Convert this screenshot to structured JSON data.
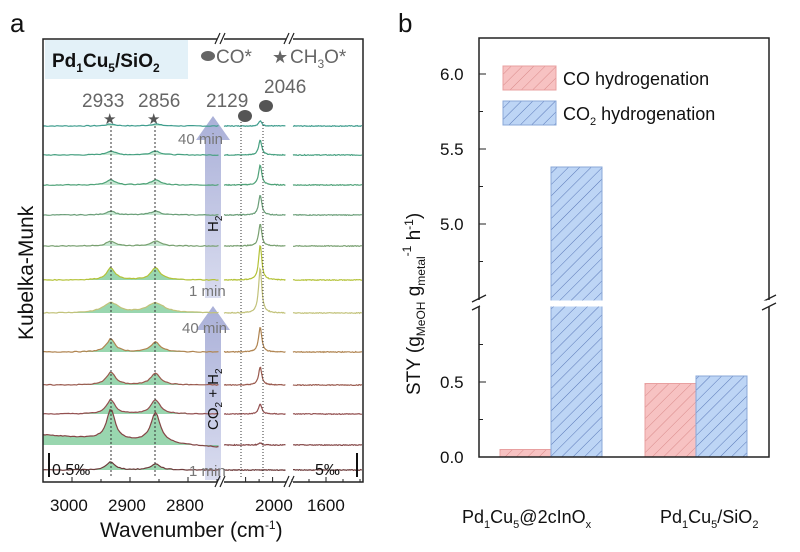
{
  "chart_data": [
    {
      "panel": "a",
      "type": "line",
      "sample_label": {
        "p1": "Pd",
        "s1": "1",
        "p2": "Cu",
        "s2": "5",
        "p3": "/SiO",
        "s3": "2"
      },
      "legend": {
        "co": "CO*",
        "ch3o_a": "CH",
        "ch3o_sub": "3",
        "ch3o_b": "O*"
      },
      "peak_labels": [
        "2933",
        "2856",
        "2129",
        "2046"
      ],
      "peak_positions": [
        2933,
        2856,
        2129,
        2046
      ],
      "ylabel": "Kubelka-Munk",
      "xlabel": "Wavenumber (cm",
      "xlabel_sup": "-1",
      "xlabel_end": ")",
      "xticks": [
        "3000",
        "2900",
        "2800",
        "2000",
        "1600"
      ],
      "xtick_values": [
        3000,
        2900,
        2800,
        2000,
        1600
      ],
      "arrows": {
        "h2": {
          "label": "H",
          "sub": "2",
          "start": "1 min",
          "end": "40 min"
        },
        "co2h2": {
          "label_a": "CO",
          "sub_a": "2",
          "label_b": " + H",
          "sub_b": "2",
          "start": "1 min",
          "end": "40 min"
        }
      },
      "scale_bars": {
        "left": "0.5‰",
        "right": "5‰"
      },
      "traces": [
        {
          "phase": "H2",
          "color": "#3f9d8e",
          "ch3o_2933": 2,
          "ch3o_2856": 2,
          "co_2046": 5
        },
        {
          "phase": "H2",
          "color": "#46a080",
          "ch3o_2933": 4,
          "ch3o_2856": 4,
          "co_2046": 15
        },
        {
          "phase": "H2",
          "color": "#4fa278",
          "ch3o_2933": 5,
          "ch3o_2856": 5,
          "co_2046": 20
        },
        {
          "phase": "H2",
          "color": "#6a9e78",
          "ch3o_2933": 4,
          "ch3o_2856": 4,
          "co_2046": 20
        },
        {
          "phase": "H2",
          "color": "#78a070",
          "ch3o_2933": 5,
          "ch3o_2856": 5,
          "co_2046": 22
        },
        {
          "phase": "H2",
          "color": "#b4c238",
          "ch3o_2933": 12,
          "ch3o_2856": 12,
          "co_2046": 35
        },
        {
          "phase": "CO2+H2",
          "color": "#c2c27a",
          "ch3o_2933": 10,
          "ch3o_2856": 10,
          "co_2046": 45
        },
        {
          "phase": "CO2+H2",
          "color": "#b08450",
          "ch3o_2933": 13,
          "ch3o_2856": 10,
          "co_2046": 25
        },
        {
          "phase": "CO2+H2",
          "color": "#9a5a4e",
          "ch3o_2933": 13,
          "ch3o_2856": 12,
          "co_2046": 18
        },
        {
          "phase": "CO2+H2",
          "color": "#935050",
          "ch3o_2933": 14,
          "ch3o_2856": 14,
          "co_2046": 10
        },
        {
          "phase": "CO2+H2",
          "color": "#844646",
          "ch3o_2933": 30,
          "ch3o_2856": 30,
          "co_2046": 2
        },
        {
          "phase": "CO2+H2",
          "color": "#6e3c3c",
          "ch3o_2933": 8,
          "ch3o_2856": 6,
          "co_2046": 0
        }
      ]
    },
    {
      "panel": "b",
      "type": "bar",
      "categories": [
        {
          "p1": "Pd",
          "s1": "1",
          "p2": "Cu",
          "s2": "5",
          "p3": "@2cInO",
          "s3": "x"
        },
        {
          "p1": "Pd",
          "s1": "1",
          "p2": "Cu",
          "s2": "5",
          "p3": "/SiO",
          "s3": "2"
        }
      ],
      "series": [
        {
          "name": "CO hydrogenation",
          "values": [
            0.05,
            0.49
          ],
          "color": "#f7c2c2",
          "hatch": "#d98a8a"
        },
        {
          "name": "CO2 hydrogenation",
          "name_a": "CO",
          "name_sub": "2",
          "name_b": " hydrogenation",
          "values": [
            5.38,
            0.54
          ],
          "color": "#bdd5f5",
          "hatch": "#5a78b8"
        }
      ],
      "ylabel": {
        "a": "STY (g",
        "sub1": "MeOH",
        "b": " g",
        "sub2": "metal",
        "sup1": "-1",
        "c": " h",
        "sup2": "-1",
        "d": ")"
      },
      "yticks_lower": [
        "0.0",
        "0.5"
      ],
      "yticks_lower_values": [
        0.0,
        0.5
      ],
      "yticks_upper": [
        "5.0",
        "5.5",
        "6.0"
      ],
      "yticks_upper_values": [
        5.0,
        5.5,
        6.0
      ],
      "ylim_lower": [
        0,
        1.0
      ],
      "ylim_upper": [
        4.49,
        6.25
      ],
      "legend_position": "top-right"
    }
  ],
  "panel_labels": {
    "a": "a",
    "b": "b"
  }
}
